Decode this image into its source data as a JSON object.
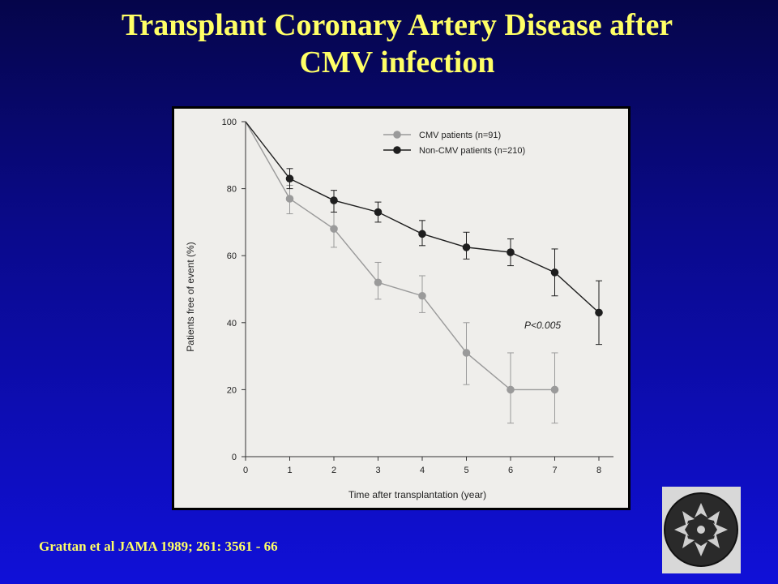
{
  "slide": {
    "title_line1": "Transplant Coronary Artery Disease after",
    "title_line2": "CMV infection",
    "citation": "Grattan et al JAMA 1989; 261: 3561 - 66"
  },
  "colors": {
    "background_top": "#05054a",
    "background_bottom": "#1010d8",
    "title": "#ffff66",
    "cmv_series": "#9a9a9a",
    "non_cmv_series": "#1e1e1e"
  },
  "chart_data": {
    "type": "line",
    "title": "",
    "xlabel": "Time after transplantation (year)",
    "ylabel": "Patients free of event (%)",
    "xlim": [
      0,
      8
    ],
    "ylim": [
      0,
      100
    ],
    "xticks": [
      0,
      1,
      2,
      3,
      4,
      5,
      6,
      7,
      8
    ],
    "yticks": [
      0,
      20,
      40,
      60,
      80,
      100
    ],
    "grid": false,
    "legend_position": "top-right",
    "annotation": "P<0.005",
    "series": [
      {
        "name": "CMV patients (n=91)",
        "color": "#9a9a9a",
        "x": [
          0,
          1,
          2,
          3,
          4,
          5,
          6,
          7
        ],
        "y": [
          100,
          77,
          68,
          52,
          48,
          31,
          20,
          20
        ],
        "err_low": [
          null,
          72.5,
          62.5,
          47,
          43,
          21.5,
          10,
          10
        ],
        "err_high": [
          null,
          81,
          73,
          58,
          54,
          40,
          31,
          31
        ]
      },
      {
        "name": "Non-CMV patients (n=210)",
        "color": "#1e1e1e",
        "x": [
          0,
          1,
          2,
          3,
          4,
          5,
          6,
          7,
          8
        ],
        "y": [
          100,
          83,
          76.5,
          73,
          66.5,
          62.5,
          61,
          55,
          43
        ],
        "err_low": [
          null,
          80,
          73,
          70,
          63,
          59,
          57,
          48,
          33.5
        ],
        "err_high": [
          null,
          86,
          79.5,
          76,
          70.5,
          67,
          65,
          62,
          52.5
        ]
      }
    ]
  }
}
